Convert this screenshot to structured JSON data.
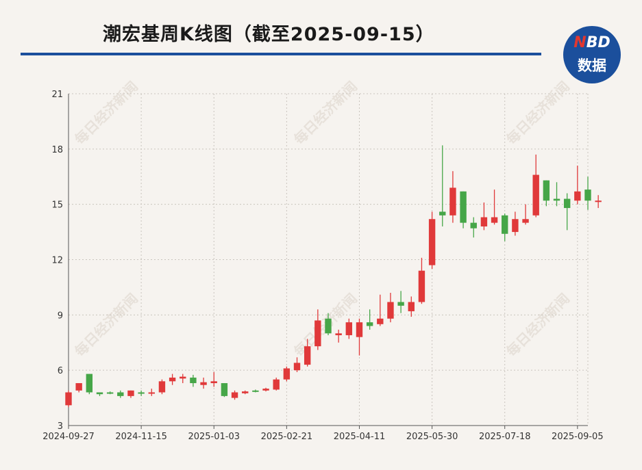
{
  "title": "潮宏基周K线图（截至2025-09-15）",
  "logo": {
    "line1_n": "N",
    "line1_rest": "BD",
    "line2": "数据"
  },
  "watermark": "每日经济新闻",
  "colors": {
    "up": "#e0393a",
    "down": "#46a648",
    "brand": "#1b4f9c",
    "grid": "#c9c4bd"
  },
  "chart_data": {
    "type": "candlestick",
    "ylim": [
      3,
      21
    ],
    "y_ticks": [
      3,
      6,
      9,
      12,
      15,
      18,
      21
    ],
    "x_tick_labels": [
      "2024-09-27",
      "2024-11-15",
      "2025-01-03",
      "2025-02-21",
      "2025-04-11",
      "2025-05-30",
      "2025-07-18",
      "2025-09-05"
    ],
    "x_tick_weeks": [
      0,
      7,
      14,
      21,
      28,
      35,
      42,
      49
    ],
    "grid": true,
    "candles": [
      [
        4.1,
        4.8,
        4.0,
        4.9
      ],
      [
        4.9,
        5.3,
        4.8,
        5.3
      ],
      [
        5.8,
        4.8,
        4.7,
        5.8
      ],
      [
        4.8,
        4.7,
        4.6,
        4.8
      ],
      [
        4.8,
        4.75,
        4.7,
        4.85
      ],
      [
        4.8,
        4.6,
        4.5,
        4.9
      ],
      [
        4.6,
        4.9,
        4.5,
        4.9
      ],
      [
        4.8,
        4.75,
        4.6,
        4.9
      ],
      [
        4.75,
        4.8,
        4.6,
        5.0
      ],
      [
        4.8,
        5.4,
        4.7,
        5.5
      ],
      [
        5.4,
        5.6,
        5.2,
        5.8
      ],
      [
        5.55,
        5.65,
        5.3,
        5.8
      ],
      [
        5.6,
        5.3,
        5.1,
        5.75
      ],
      [
        5.2,
        5.35,
        5.0,
        5.6
      ],
      [
        5.3,
        5.4,
        5.1,
        5.9
      ],
      [
        5.3,
        4.6,
        4.55,
        5.3
      ],
      [
        4.5,
        4.8,
        4.4,
        4.9
      ],
      [
        4.75,
        4.85,
        4.7,
        4.9
      ],
      [
        4.9,
        4.85,
        4.8,
        4.95
      ],
      [
        4.9,
        5.0,
        4.85,
        5.05
      ],
      [
        4.95,
        5.5,
        4.9,
        5.6
      ],
      [
        5.5,
        6.1,
        5.4,
        6.2
      ],
      [
        6.0,
        6.4,
        5.9,
        6.7
      ],
      [
        6.3,
        7.3,
        6.2,
        7.7
      ],
      [
        7.3,
        8.7,
        7.1,
        9.3
      ],
      [
        8.8,
        8.0,
        7.9,
        9.1
      ],
      [
        7.9,
        8.0,
        7.5,
        8.2
      ],
      [
        7.9,
        8.6,
        7.7,
        8.8
      ],
      [
        7.8,
        8.6,
        6.8,
        8.8
      ],
      [
        8.6,
        8.4,
        8.2,
        9.3
      ],
      [
        8.5,
        8.8,
        8.4,
        10.1
      ],
      [
        8.8,
        9.7,
        8.6,
        10.2
      ],
      [
        9.7,
        9.5,
        9.1,
        10.3
      ],
      [
        9.2,
        9.7,
        8.9,
        10.0
      ],
      [
        9.7,
        11.4,
        9.6,
        12.1
      ],
      [
        11.7,
        14.2,
        11.5,
        14.6
      ],
      [
        14.6,
        14.4,
        13.8,
        18.2
      ],
      [
        14.4,
        15.9,
        14.0,
        16.8
      ],
      [
        15.7,
        14.0,
        13.7,
        15.7
      ],
      [
        14.0,
        13.7,
        13.2,
        14.3
      ],
      [
        13.8,
        14.3,
        13.6,
        15.1
      ],
      [
        14.0,
        14.3,
        13.9,
        15.8
      ],
      [
        14.4,
        13.4,
        13.0,
        14.5
      ],
      [
        13.5,
        14.2,
        13.3,
        14.6
      ],
      [
        14.0,
        14.2,
        13.9,
        15.0
      ],
      [
        14.4,
        16.6,
        14.3,
        17.7
      ],
      [
        16.3,
        15.2,
        14.9,
        16.3
      ],
      [
        15.3,
        15.2,
        14.9,
        16.2
      ],
      [
        15.3,
        14.8,
        13.6,
        15.6
      ],
      [
        15.2,
        15.7,
        15.0,
        17.1
      ],
      [
        15.8,
        15.2,
        14.7,
        16.5
      ],
      [
        15.2,
        15.2,
        14.8,
        15.5
      ]
    ]
  }
}
